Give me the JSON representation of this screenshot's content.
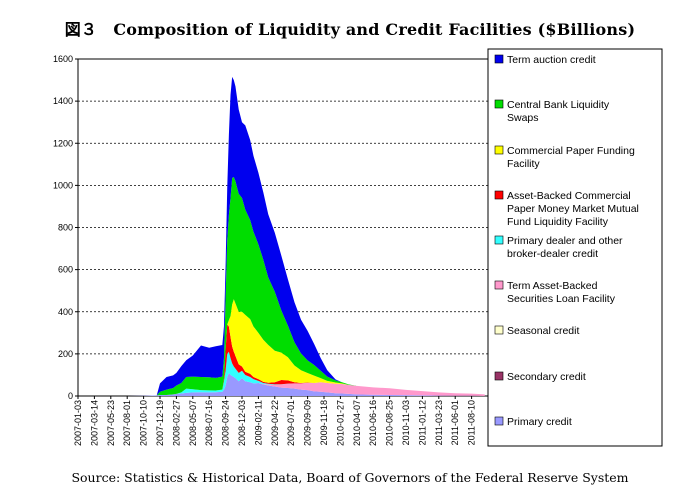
{
  "chart_data": {
    "type": "area",
    "title": "図３　Composition of Liquidity and Credit Facilities ($Billions)",
    "source": "Source: Statistics & Historical Data, Board of Governors of the Federal Reserve System",
    "stacked": true,
    "ylim": [
      0,
      1600
    ],
    "yticks": [
      "0",
      "200",
      "400",
      "600",
      "800",
      "1000",
      "1200",
      "1400",
      "1600"
    ],
    "grid": true,
    "legend_position": "right",
    "x_tick_labels": [
      "2007-01-03",
      "2007-03-14",
      "2007-05-23",
      "2007-08-01",
      "2007-10-10",
      "2007-12-19",
      "2008-02-27",
      "2008-05-07",
      "2008-07-16",
      "2008-09-24",
      "2008-12-03",
      "2009-02-11",
      "2009-04-22",
      "2009-07-01",
      "2009-09-09",
      "2009-11-18",
      "2010-01-27",
      "2010-04-07",
      "2010-06-16",
      "2010-08-25",
      "2010-11-03",
      "2011-01-12",
      "2011-03-23",
      "2011-06-01",
      "2011-08-10"
    ],
    "x": [
      "2007-01-03",
      "2007-03-14",
      "2007-05-23",
      "2007-08-01",
      "2007-10-10",
      "2007-12-05",
      "2007-12-19",
      "2008-01-16",
      "2008-02-13",
      "2008-02-27",
      "2008-03-19",
      "2008-04-09",
      "2008-05-07",
      "2008-06-11",
      "2008-07-16",
      "2008-08-13",
      "2008-09-10",
      "2008-09-17",
      "2008-09-24",
      "2008-10-01",
      "2008-10-08",
      "2008-10-15",
      "2008-10-22",
      "2008-10-29",
      "2008-11-05",
      "2008-11-19",
      "2008-12-03",
      "2008-12-17",
      "2009-01-07",
      "2009-01-21",
      "2009-02-11",
      "2009-03-04",
      "2009-03-25",
      "2009-04-22",
      "2009-05-20",
      "2009-06-17",
      "2009-07-15",
      "2009-08-12",
      "2009-09-09",
      "2009-10-07",
      "2009-11-04",
      "2009-12-02",
      "2010-01-06",
      "2010-02-03",
      "2010-03-03",
      "2010-04-07",
      "2010-06-16",
      "2010-08-25",
      "2010-11-03",
      "2011-01-12",
      "2011-03-23",
      "2011-06-01",
      "2011-08-10",
      "2011-10-05"
    ],
    "series": [
      {
        "name": "Primary credit",
        "color": "#9999ff",
        "values": [
          0,
          0,
          0,
          0,
          1,
          3,
          5,
          5,
          8,
          10,
          12,
          15,
          17,
          18,
          17,
          18,
          20,
          30,
          50,
          90,
          110,
          100,
          95,
          90,
          85,
          70,
          85,
          70,
          65,
          60,
          62,
          55,
          50,
          45,
          40,
          38,
          35,
          30,
          28,
          22,
          20,
          17,
          13,
          12,
          10,
          8,
          6,
          5,
          4,
          3,
          2,
          1,
          1,
          0
        ]
      },
      {
        "name": "Secondary credit",
        "color": "#993366",
        "values": [
          0,
          0,
          0,
          0,
          0,
          0,
          0,
          0,
          0,
          0,
          0,
          0,
          0,
          0,
          0,
          0,
          0,
          0,
          0,
          0,
          0,
          0,
          0,
          0,
          0,
          0,
          0,
          0,
          0,
          0,
          0,
          0,
          0,
          0,
          0,
          0,
          0,
          0,
          0,
          0,
          0,
          0,
          0,
          0,
          0,
          0,
          0,
          0,
          0,
          0,
          0,
          0,
          0,
          0
        ]
      },
      {
        "name": "Seasonal credit",
        "color": "#ffffcc",
        "values": [
          0,
          0,
          0,
          0,
          0,
          0,
          0,
          0,
          0,
          0,
          0,
          0,
          0,
          0,
          0,
          0,
          0,
          0,
          0,
          0,
          0,
          0,
          0,
          0,
          0,
          0,
          0,
          0,
          0,
          0,
          0,
          0,
          0,
          0,
          0,
          0,
          0,
          0,
          0,
          0,
          0,
          0,
          0,
          0,
          0,
          0,
          0,
          0,
          0,
          0,
          0,
          0,
          0,
          0
        ]
      },
      {
        "name": "Term Asset-Backed Securities Loan Facility",
        "color": "#ff99cc",
        "values": [
          0,
          0,
          0,
          0,
          0,
          0,
          0,
          0,
          0,
          0,
          0,
          0,
          0,
          0,
          0,
          0,
          0,
          0,
          0,
          0,
          0,
          0,
          0,
          0,
          0,
          0,
          0,
          0,
          0,
          0,
          0,
          2,
          5,
          8,
          15,
          20,
          25,
          30,
          35,
          40,
          45,
          45,
          45,
          45,
          43,
          40,
          35,
          32,
          25,
          20,
          15,
          12,
          10,
          8
        ]
      },
      {
        "name": "Primary dealer and other broker-dealer credit",
        "color": "#33ffff",
        "values": [
          0,
          0,
          0,
          0,
          0,
          0,
          0,
          0,
          0,
          0,
          5,
          20,
          15,
          10,
          10,
          8,
          10,
          40,
          70,
          110,
          100,
          80,
          60,
          50,
          45,
          40,
          35,
          30,
          25,
          20,
          10,
          5,
          3,
          2,
          1,
          1,
          0,
          0,
          0,
          0,
          0,
          0,
          0,
          0,
          0,
          0,
          0,
          0,
          0,
          0,
          0,
          0,
          0,
          0
        ]
      },
      {
        "name": "Asset-Backed Commercial Paper Money Market Mutual Fund Liquidity Facility",
        "color": "#ff0000",
        "values": [
          0,
          0,
          0,
          0,
          0,
          0,
          0,
          0,
          0,
          0,
          0,
          0,
          0,
          0,
          0,
          0,
          0,
          10,
          100,
          140,
          120,
          100,
          80,
          70,
          60,
          40,
          20,
          15,
          15,
          10,
          8,
          5,
          5,
          10,
          20,
          15,
          5,
          2,
          1,
          0,
          0,
          0,
          0,
          0,
          0,
          0,
          0,
          0,
          0,
          0,
          0,
          0,
          0,
          0
        ]
      },
      {
        "name": "Commercial Paper Funding Facility",
        "color": "#ffff00",
        "values": [
          0,
          0,
          0,
          0,
          0,
          0,
          0,
          0,
          0,
          0,
          0,
          0,
          0,
          0,
          0,
          0,
          0,
          0,
          0,
          0,
          30,
          100,
          200,
          250,
          250,
          250,
          260,
          270,
          260,
          240,
          220,
          200,
          180,
          150,
          130,
          110,
          80,
          60,
          45,
          35,
          20,
          10,
          6,
          3,
          0,
          0,
          0,
          0,
          0,
          0,
          0,
          0,
          0,
          0
        ]
      },
      {
        "name": "Central Bank Liquidity Swaps",
        "color": "#00dd00",
        "values": [
          0,
          0,
          0,
          0,
          0,
          0,
          15,
          25,
          30,
          40,
          45,
          55,
          60,
          62,
          62,
          60,
          62,
          100,
          250,
          400,
          500,
          560,
          600,
          580,
          580,
          560,
          540,
          500,
          470,
          450,
          420,
          380,
          320,
          280,
          200,
          150,
          110,
          80,
          60,
          50,
          35,
          20,
          10,
          5,
          2,
          0,
          0,
          0,
          0,
          0,
          0,
          0,
          0,
          0
        ]
      },
      {
        "name": "Term auction credit",
        "color": "#0000ee",
        "values": [
          0,
          0,
          0,
          0,
          0,
          0,
          40,
          60,
          60,
          60,
          80,
          80,
          100,
          150,
          140,
          150,
          150,
          150,
          150,
          250,
          380,
          490,
          480,
          460,
          450,
          400,
          360,
          400,
          380,
          360,
          340,
          320,
          300,
          280,
          260,
          220,
          190,
          160,
          140,
          100,
          60,
          30,
          5,
          0,
          0,
          0,
          0,
          0,
          0,
          0,
          0,
          0,
          0,
          0
        ]
      }
    ]
  }
}
